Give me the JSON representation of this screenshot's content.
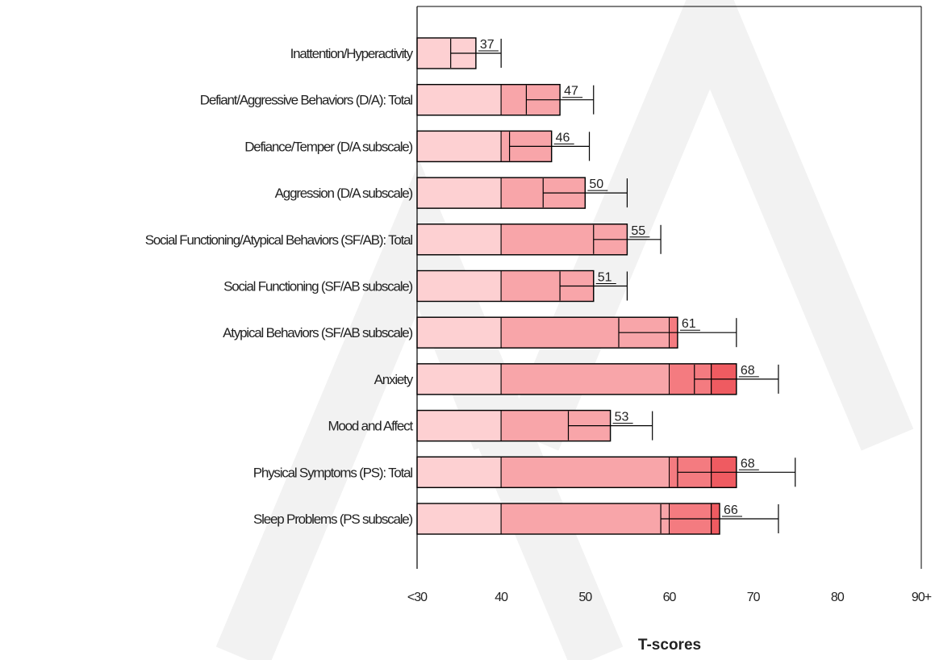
{
  "chart_data": {
    "type": "bar",
    "orientation": "horizontal",
    "xlabel": "T-scores",
    "xlim": [
      30,
      90
    ],
    "xtick_values": [
      30,
      40,
      50,
      60,
      70,
      80,
      90
    ],
    "xtick_labels": [
      "<30",
      "40",
      "50",
      "60",
      "70",
      "80",
      "90+"
    ],
    "bands": [
      {
        "from": 30,
        "to": 40,
        "color": "#fdd0d2"
      },
      {
        "from": 40,
        "to": 60,
        "color": "#f8a5a9"
      },
      {
        "from": 60,
        "to": 65,
        "color": "#f47b80"
      },
      {
        "from": 65,
        "to": 90,
        "color": "#ef5b61"
      }
    ],
    "categories": [
      "Inattention/Hyperactivity",
      "Defiant/Aggressive Behaviors (D/A): Total",
      "Defiance/Temper (D/A subscale)",
      "Aggression (D/A subscale)",
      "Social Functioning/Atypical Behaviors (SF/AB): Total",
      "Social Functioning (SF/AB subscale)",
      "Atypical Behaviors (SF/AB subscale)",
      "Anxiety",
      "Mood and Affect",
      "Physical Symptoms (PS): Total",
      "Sleep Problems (PS subscale)"
    ],
    "values": [
      37,
      47,
      46,
      50,
      55,
      51,
      61,
      68,
      53,
      68,
      66
    ],
    "value_labels": [
      "37",
      "47",
      "46",
      "50",
      "55",
      "51",
      "61",
      "68",
      "53",
      "68",
      "66"
    ],
    "error_low": [
      34,
      43,
      41,
      45,
      51,
      47,
      54,
      63,
      48,
      61,
      59
    ],
    "error_high": [
      40,
      51,
      50.5,
      55,
      59,
      55,
      68,
      73,
      58,
      75,
      73
    ],
    "error_mid": [
      null,
      null,
      null,
      null,
      null,
      null,
      null,
      65,
      null,
      65,
      65
    ],
    "grid": false,
    "legend": "none",
    "watermark": "MPLE"
  }
}
